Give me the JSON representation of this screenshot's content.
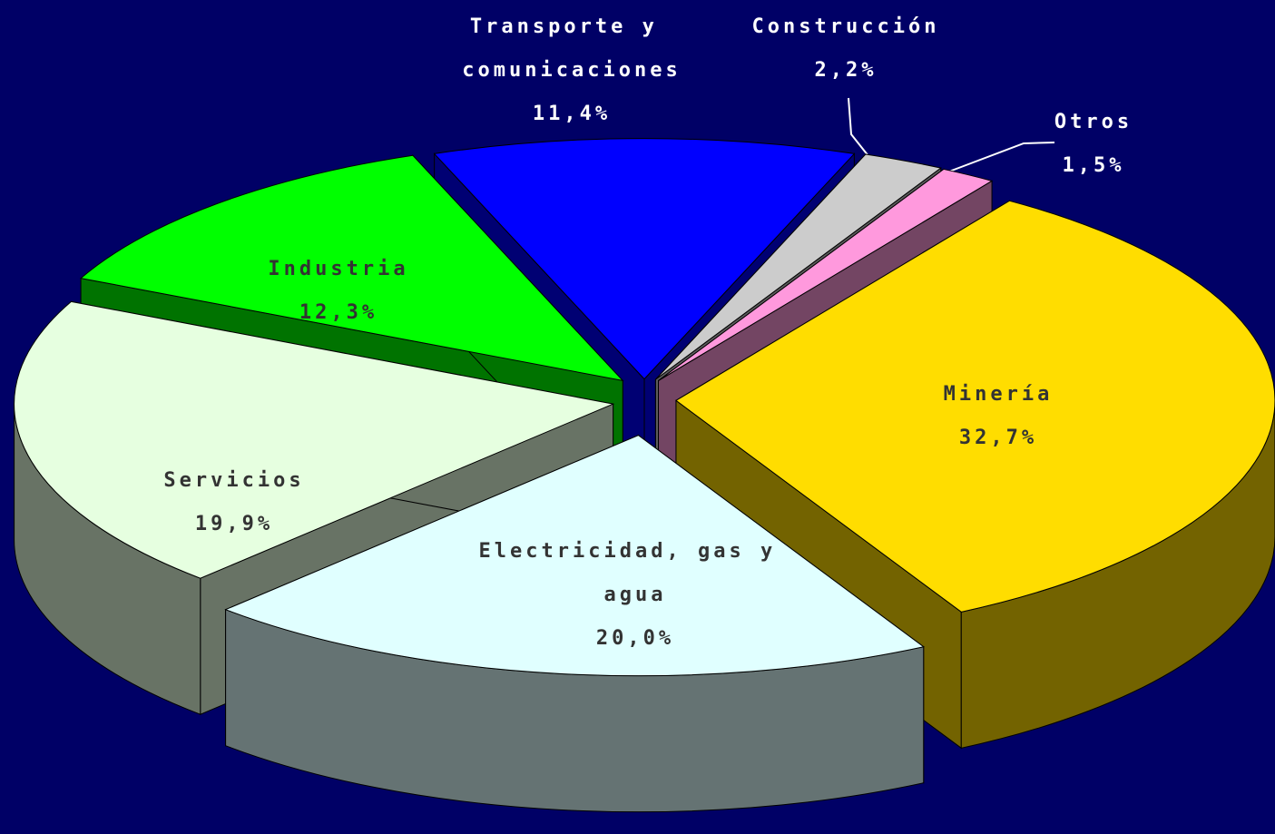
{
  "chart_data": {
    "type": "pie",
    "categories": [
      "Transporte y comunicaciones",
      "Construcción",
      "Otros",
      "Minería",
      "Electricidad, gas y agua",
      "Servicios",
      "Industria"
    ],
    "values": [
      11.4,
      2.2,
      1.5,
      32.7,
      20.0,
      19.9,
      12.3
    ],
    "value_labels": [
      "11,4%",
      "2,2%",
      "1,5%",
      "32,7%",
      "20,0%",
      "19,9%",
      "12,3%"
    ],
    "colors": [
      "#0000ff",
      "#cccccc",
      "#ff99dd",
      "#ffdd00",
      "#e0ffff",
      "#e6ffe0",
      "#00ff00"
    ],
    "legend": false
  }
}
